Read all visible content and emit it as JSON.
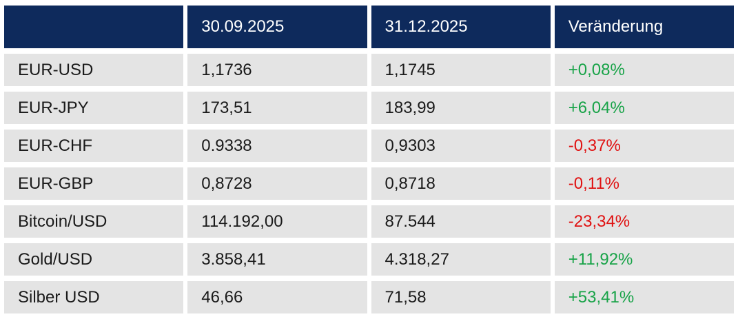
{
  "chart_data": {
    "type": "table",
    "columns": [
      "",
      "30.09.2025",
      "31.12.2025",
      "Veränderung"
    ],
    "rows": [
      {
        "label": "EUR-USD",
        "v1": "1,1736",
        "v2": "1,1745",
        "change": "+0,08%"
      },
      {
        "label": "EUR-JPY",
        "v1": "173,51",
        "v2": "183,99",
        "change": "+6,04%"
      },
      {
        "label": "EUR-CHF",
        "v1": "0.9338",
        "v2": "0,9303",
        "change": "-0,37%"
      },
      {
        "label": "EUR-GBP",
        "v1": "0,8728",
        "v2": "0,8718",
        "change": "-0,11%"
      },
      {
        "label": "Bitcoin/USD",
        "v1": "114.192,00",
        "v2": "87.544",
        "change": "-23,34%"
      },
      {
        "label": "Gold/USD",
        "v1": "3.858,41",
        "v2": "4.318,27",
        "change": "+11,92%"
      },
      {
        "label": "Silber USD",
        "v1": "46,66",
        "v2": "71,58",
        "change": "+53,41%"
      }
    ]
  },
  "colors": {
    "header_bg": "#0e2a5c",
    "row_bg": "#e4e4e4",
    "positive_change": "#18a348",
    "negative_change": "#e01212",
    "header_text": "#ffffff",
    "cell_text": "#1a1a1a",
    "page_bg": "#ffffff"
  }
}
